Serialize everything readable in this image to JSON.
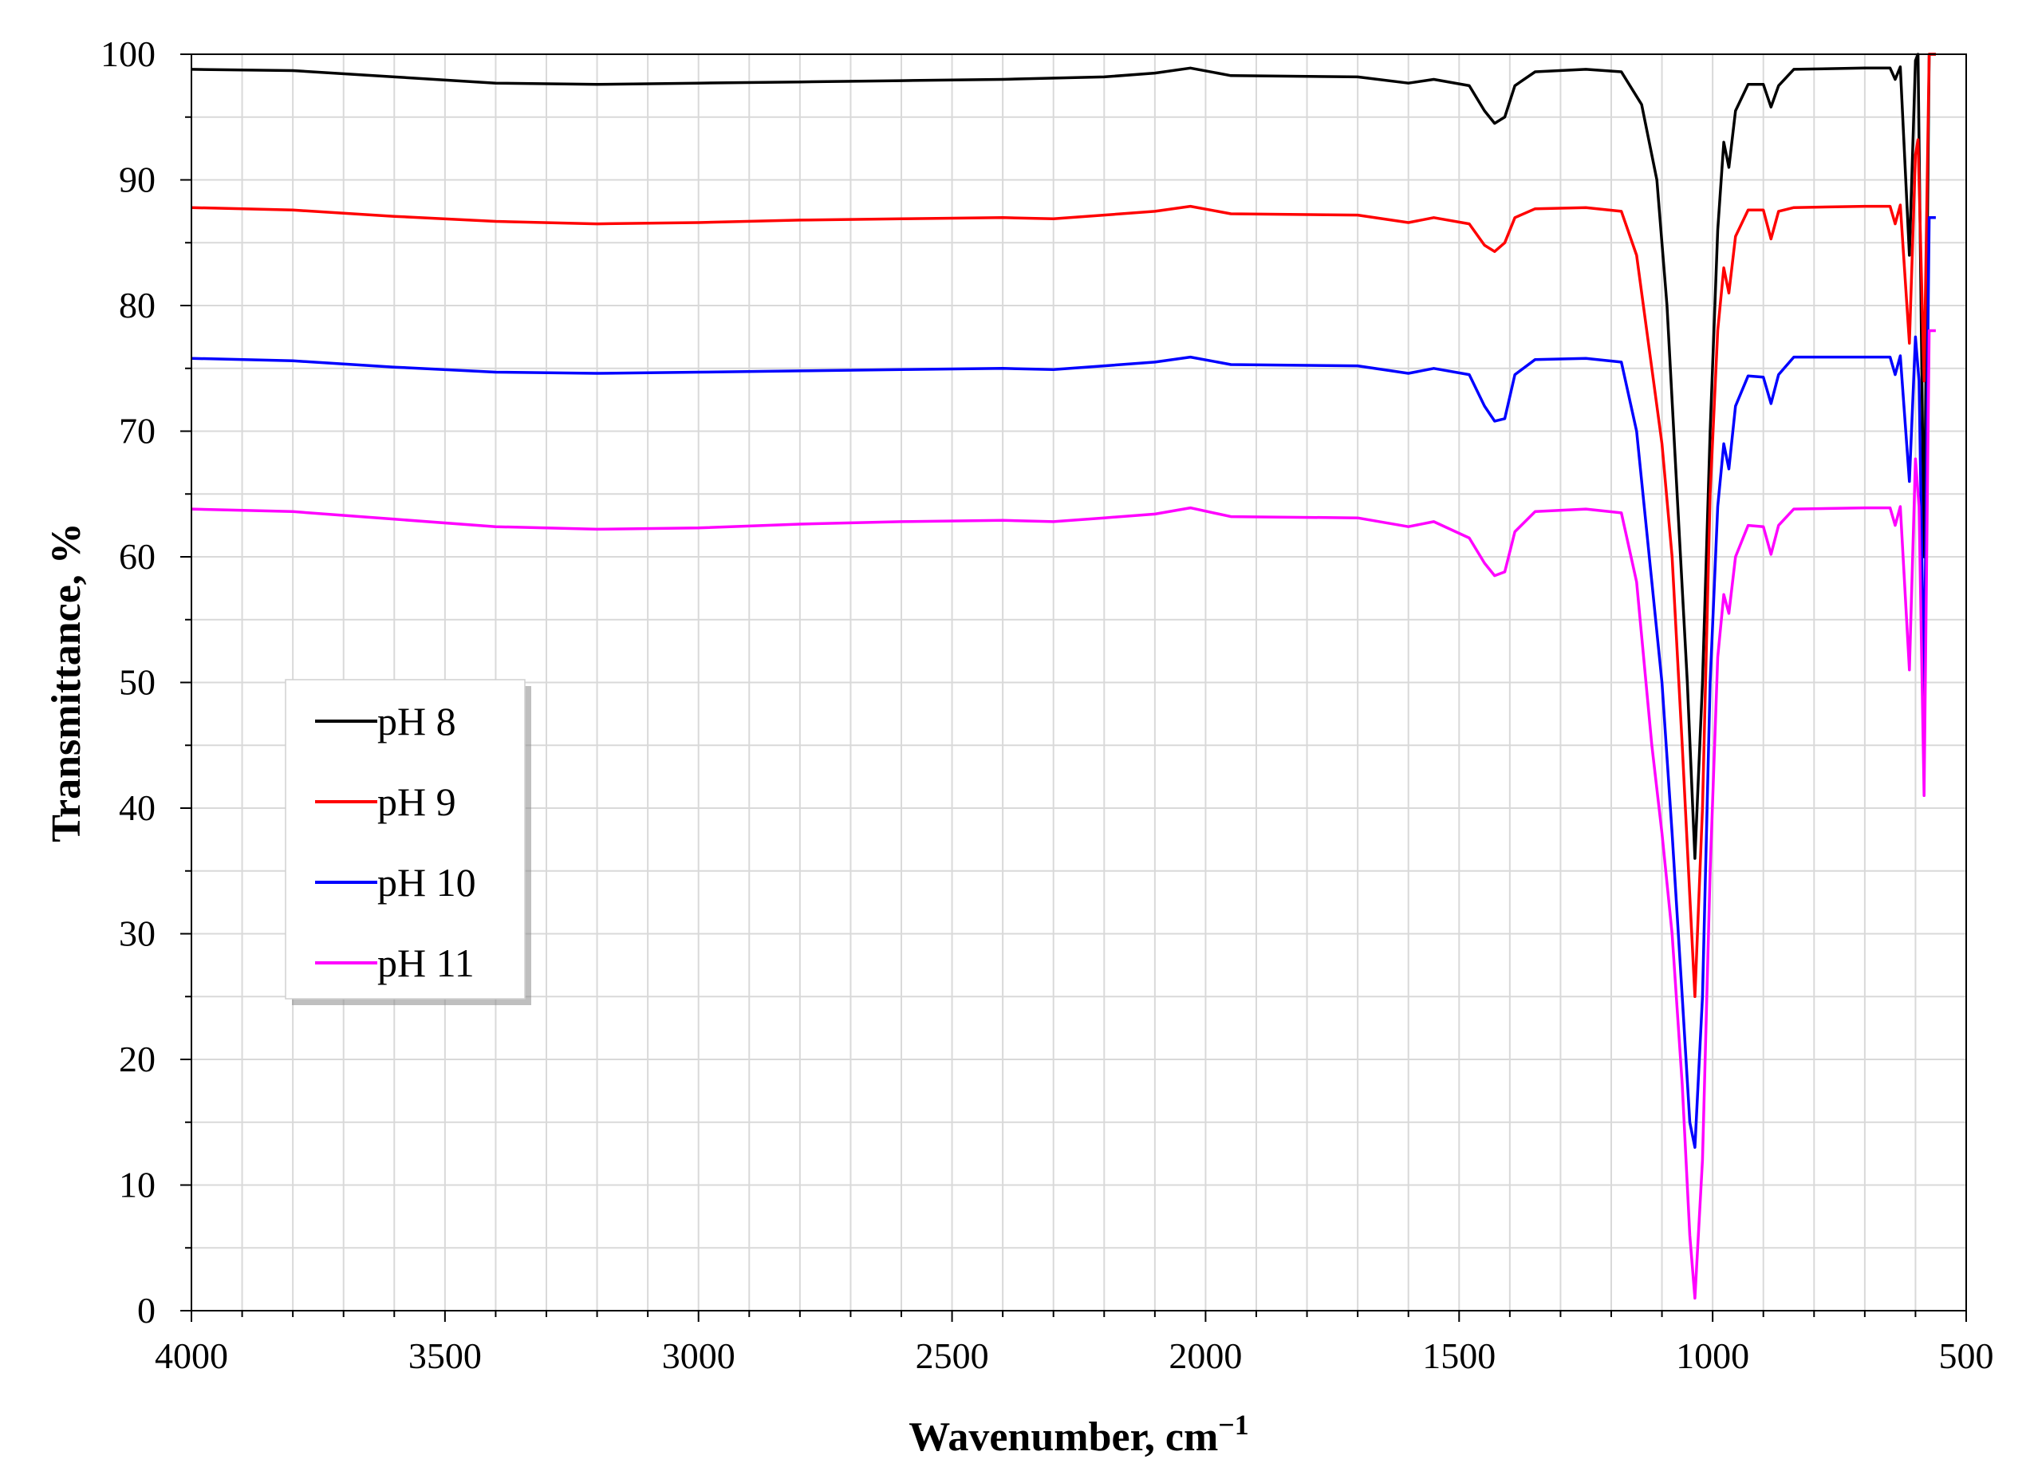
{
  "chart_data": {
    "type": "line",
    "xlabel": "Wavenumber, cm",
    "xlabel_superscript": "−1",
    "ylabel": "Transmittance, %",
    "xlim": [
      4000,
      500
    ],
    "ylim": [
      0,
      100
    ],
    "x_ticks": [
      4000,
      3500,
      3000,
      2500,
      2000,
      1500,
      1000,
      500
    ],
    "y_ticks": [
      0,
      10,
      20,
      30,
      40,
      50,
      60,
      70,
      80,
      90,
      100
    ],
    "x_minor_step": 100,
    "y_minor_step": 5,
    "grid": true,
    "legend_position": "left-middle",
    "series": [
      {
        "name": "pH 8",
        "color": "#000000",
        "points": [
          [
            4000,
            98.8
          ],
          [
            3800,
            98.7
          ],
          [
            3600,
            98.2
          ],
          [
            3400,
            97.7
          ],
          [
            3200,
            97.6
          ],
          [
            3000,
            97.7
          ],
          [
            2800,
            97.8
          ],
          [
            2600,
            97.9
          ],
          [
            2400,
            98.0
          ],
          [
            2200,
            98.2
          ],
          [
            2100,
            98.5
          ],
          [
            2030,
            98.9
          ],
          [
            1950,
            98.3
          ],
          [
            1700,
            98.2
          ],
          [
            1600,
            97.7
          ],
          [
            1550,
            98.0
          ],
          [
            1480,
            97.5
          ],
          [
            1450,
            95.5
          ],
          [
            1430,
            94.5
          ],
          [
            1410,
            95.0
          ],
          [
            1390,
            97.5
          ],
          [
            1350,
            98.6
          ],
          [
            1250,
            98.8
          ],
          [
            1180,
            98.6
          ],
          [
            1140,
            96.0
          ],
          [
            1110,
            90.0
          ],
          [
            1090,
            80.0
          ],
          [
            1070,
            65.0
          ],
          [
            1050,
            50.0
          ],
          [
            1035,
            36.0
          ],
          [
            1020,
            50.0
          ],
          [
            1005,
            70.0
          ],
          [
            990,
            86.0
          ],
          [
            978,
            93.0
          ],
          [
            968,
            91.0
          ],
          [
            955,
            95.5
          ],
          [
            930,
            97.6
          ],
          [
            900,
            97.6
          ],
          [
            885,
            95.8
          ],
          [
            870,
            97.5
          ],
          [
            840,
            98.8
          ],
          [
            700,
            98.9
          ],
          [
            650,
            98.9
          ],
          [
            640,
            98.0
          ],
          [
            630,
            99.0
          ],
          [
            612,
            84.0
          ],
          [
            600,
            99.5
          ],
          [
            595,
            100
          ],
          [
            583,
            60.0
          ],
          [
            573,
            100
          ],
          [
            560,
            100
          ]
        ]
      },
      {
        "name": "pH 9",
        "color": "#ff0000",
        "points": [
          [
            4000,
            87.8
          ],
          [
            3800,
            87.6
          ],
          [
            3600,
            87.1
          ],
          [
            3400,
            86.7
          ],
          [
            3200,
            86.5
          ],
          [
            3000,
            86.6
          ],
          [
            2800,
            86.8
          ],
          [
            2600,
            86.9
          ],
          [
            2400,
            87.0
          ],
          [
            2300,
            86.9
          ],
          [
            2200,
            87.2
          ],
          [
            2100,
            87.5
          ],
          [
            2030,
            87.9
          ],
          [
            1950,
            87.3
          ],
          [
            1700,
            87.2
          ],
          [
            1600,
            86.6
          ],
          [
            1550,
            87.0
          ],
          [
            1480,
            86.5
          ],
          [
            1450,
            84.8
          ],
          [
            1430,
            84.3
          ],
          [
            1410,
            85.0
          ],
          [
            1390,
            87.0
          ],
          [
            1350,
            87.7
          ],
          [
            1250,
            87.8
          ],
          [
            1180,
            87.5
          ],
          [
            1150,
            84.0
          ],
          [
            1120,
            75.0
          ],
          [
            1100,
            69.0
          ],
          [
            1080,
            60.0
          ],
          [
            1060,
            45.0
          ],
          [
            1045,
            33.0
          ],
          [
            1035,
            25.0
          ],
          [
            1020,
            40.0
          ],
          [
            1005,
            65.0
          ],
          [
            990,
            78.0
          ],
          [
            978,
            83.0
          ],
          [
            968,
            81.0
          ],
          [
            955,
            85.5
          ],
          [
            930,
            87.6
          ],
          [
            900,
            87.6
          ],
          [
            885,
            85.3
          ],
          [
            870,
            87.5
          ],
          [
            840,
            87.8
          ],
          [
            700,
            87.9
          ],
          [
            650,
            87.9
          ],
          [
            640,
            86.5
          ],
          [
            630,
            88.0
          ],
          [
            612,
            77.0
          ],
          [
            600,
            92.0
          ],
          [
            595,
            93.2
          ],
          [
            583,
            74.0
          ],
          [
            573,
            100
          ],
          [
            560,
            100
          ]
        ]
      },
      {
        "name": "pH 10",
        "color": "#0000ff",
        "points": [
          [
            4000,
            75.8
          ],
          [
            3800,
            75.6
          ],
          [
            3600,
            75.1
          ],
          [
            3400,
            74.7
          ],
          [
            3200,
            74.6
          ],
          [
            3000,
            74.7
          ],
          [
            2800,
            74.8
          ],
          [
            2600,
            74.9
          ],
          [
            2400,
            75.0
          ],
          [
            2300,
            74.9
          ],
          [
            2200,
            75.2
          ],
          [
            2100,
            75.5
          ],
          [
            2030,
            75.9
          ],
          [
            1950,
            75.3
          ],
          [
            1700,
            75.2
          ],
          [
            1600,
            74.6
          ],
          [
            1550,
            75.0
          ],
          [
            1480,
            74.5
          ],
          [
            1450,
            72.0
          ],
          [
            1430,
            70.8
          ],
          [
            1410,
            71.0
          ],
          [
            1390,
            74.5
          ],
          [
            1350,
            75.7
          ],
          [
            1250,
            75.8
          ],
          [
            1180,
            75.5
          ],
          [
            1150,
            70.0
          ],
          [
            1120,
            58.0
          ],
          [
            1100,
            50.0
          ],
          [
            1080,
            38.0
          ],
          [
            1060,
            25.0
          ],
          [
            1045,
            15.0
          ],
          [
            1035,
            13.0
          ],
          [
            1020,
            25.0
          ],
          [
            1005,
            50.0
          ],
          [
            990,
            64.0
          ],
          [
            978,
            69.0
          ],
          [
            968,
            67.0
          ],
          [
            955,
            72.0
          ],
          [
            930,
            74.4
          ],
          [
            900,
            74.3
          ],
          [
            885,
            72.2
          ],
          [
            870,
            74.5
          ],
          [
            840,
            75.9
          ],
          [
            700,
            75.9
          ],
          [
            650,
            75.9
          ],
          [
            640,
            74.5
          ],
          [
            630,
            76.0
          ],
          [
            612,
            66.0
          ],
          [
            600,
            77.5
          ],
          [
            593,
            74.0
          ],
          [
            583,
            49.0
          ],
          [
            573,
            87.0
          ],
          [
            560,
            87.0
          ]
        ]
      },
      {
        "name": "pH 11",
        "color": "#ff00ff",
        "points": [
          [
            4000,
            63.8
          ],
          [
            3800,
            63.6
          ],
          [
            3600,
            63.0
          ],
          [
            3400,
            62.4
          ],
          [
            3200,
            62.2
          ],
          [
            3000,
            62.3
          ],
          [
            2800,
            62.6
          ],
          [
            2600,
            62.8
          ],
          [
            2400,
            62.9
          ],
          [
            2300,
            62.8
          ],
          [
            2200,
            63.1
          ],
          [
            2100,
            63.4
          ],
          [
            2030,
            63.9
          ],
          [
            1950,
            63.2
          ],
          [
            1700,
            63.1
          ],
          [
            1600,
            62.4
          ],
          [
            1550,
            62.8
          ],
          [
            1480,
            61.5
          ],
          [
            1450,
            59.5
          ],
          [
            1430,
            58.5
          ],
          [
            1410,
            58.8
          ],
          [
            1390,
            62.0
          ],
          [
            1350,
            63.6
          ],
          [
            1250,
            63.8
          ],
          [
            1180,
            63.5
          ],
          [
            1150,
            58.0
          ],
          [
            1120,
            45.0
          ],
          [
            1100,
            38.0
          ],
          [
            1080,
            30.0
          ],
          [
            1060,
            18.0
          ],
          [
            1045,
            6.0
          ],
          [
            1035,
            1.0
          ],
          [
            1020,
            12.0
          ],
          [
            1005,
            35.0
          ],
          [
            990,
            52.0
          ],
          [
            978,
            57.0
          ],
          [
            968,
            55.5
          ],
          [
            955,
            60.0
          ],
          [
            930,
            62.5
          ],
          [
            900,
            62.4
          ],
          [
            885,
            60.2
          ],
          [
            870,
            62.5
          ],
          [
            840,
            63.8
          ],
          [
            700,
            63.9
          ],
          [
            650,
            63.9
          ],
          [
            640,
            62.5
          ],
          [
            630,
            64.0
          ],
          [
            612,
            51.0
          ],
          [
            600,
            67.8
          ],
          [
            593,
            64.0
          ],
          [
            583,
            41.0
          ],
          [
            573,
            78.0
          ],
          [
            560,
            78.0
          ]
        ]
      }
    ]
  }
}
